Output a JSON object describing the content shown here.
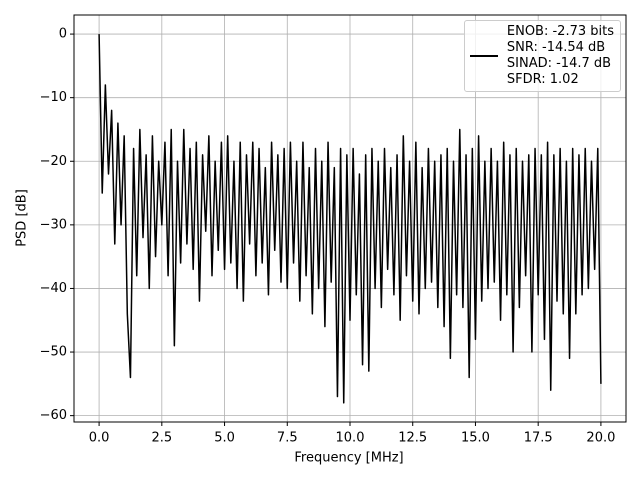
{
  "chart_data": {
    "type": "line",
    "xlabel": "Frequency [MHz]",
    "ylabel": "PSD [dB]",
    "x": [
      0,
      0.125,
      0.25,
      0.375,
      0.5,
      0.625,
      0.75,
      0.875,
      1,
      1.125,
      1.25,
      1.375,
      1.5,
      1.625,
      1.75,
      1.875,
      2,
      2.125,
      2.25,
      2.375,
      2.5,
      2.625,
      2.75,
      2.875,
      3,
      3.125,
      3.25,
      3.375,
      3.5,
      3.625,
      3.75,
      3.875,
      4,
      4.125,
      4.25,
      4.375,
      4.5,
      4.625,
      4.75,
      4.875,
      5,
      5.125,
      5.25,
      5.375,
      5.5,
      5.625,
      5.75,
      5.875,
      6,
      6.125,
      6.25,
      6.375,
      6.5,
      6.625,
      6.75,
      6.875,
      7,
      7.125,
      7.25,
      7.375,
      7.5,
      7.625,
      7.75,
      7.875,
      8,
      8.125,
      8.25,
      8.375,
      8.5,
      8.625,
      8.75,
      8.875,
      9,
      9.125,
      9.25,
      9.375,
      9.5,
      9.625,
      9.75,
      9.875,
      10,
      10.125,
      10.25,
      10.375,
      10.5,
      10.625,
      10.75,
      10.875,
      11,
      11.125,
      11.25,
      11.375,
      11.5,
      11.625,
      11.75,
      11.875,
      12,
      12.125,
      12.25,
      12.375,
      12.5,
      12.625,
      12.75,
      12.875,
      13,
      13.125,
      13.25,
      13.375,
      13.5,
      13.625,
      13.75,
      13.875,
      14,
      14.125,
      14.25,
      14.375,
      14.5,
      14.625,
      14.75,
      14.875,
      15,
      15.125,
      15.25,
      15.375,
      15.5,
      15.625,
      15.75,
      15.875,
      16,
      16.125,
      16.25,
      16.375,
      16.5,
      16.625,
      16.75,
      16.875,
      17,
      17.125,
      17.25,
      17.375,
      17.5,
      17.625,
      17.75,
      17.875,
      18,
      18.125,
      18.25,
      18.375,
      18.5,
      18.625,
      18.75,
      18.875,
      19,
      19.125,
      19.25,
      19.375,
      19.5,
      19.625,
      19.75,
      19.875,
      20
    ],
    "series": [
      {
        "name": "ENOB: -2.73 bits\nSNR: -14.54 dB\nSINAD: -14.7 dB\nSFDR: 1.02",
        "color": "#000000",
        "values": [
          0,
          -25,
          -8,
          -22,
          -12,
          -33,
          -14,
          -30,
          -16,
          -44,
          -54,
          -18,
          -38,
          -15,
          -32,
          -19,
          -40,
          -16,
          -35,
          -20,
          -30,
          -17,
          -38,
          -15,
          -49,
          -20,
          -36,
          -15,
          -33,
          -18,
          -37,
          -17,
          -42,
          -19,
          -31,
          -16,
          -38,
          -20,
          -34,
          -17,
          -37,
          -16,
          -36,
          -20,
          -40,
          -17,
          -42,
          -19,
          -33,
          -17,
          -38,
          -18,
          -36,
          -21,
          -41,
          -17,
          -34,
          -19,
          -39,
          -18,
          -40,
          -17,
          -36,
          -20,
          -42,
          -17,
          -38,
          -21,
          -44,
          -18,
          -40,
          -20,
          -46,
          -17,
          -39,
          -21,
          -57,
          -18,
          -58,
          -19,
          -45,
          -18,
          -41,
          -22,
          -52,
          -19,
          -53,
          -18,
          -40,
          -20,
          -43,
          -18,
          -37,
          -21,
          -41,
          -19,
          -45,
          -16,
          -38,
          -20,
          -42,
          -17,
          -44,
          -21,
          -40,
          -18,
          -39,
          -20,
          -43,
          -19,
          -46,
          -18,
          -51,
          -20,
          -41,
          -15,
          -43,
          -19,
          -54,
          -18,
          -48,
          -16,
          -42,
          -20,
          -40,
          -18,
          -39,
          -20,
          -45,
          -17,
          -41,
          -19,
          -50,
          -18,
          -43,
          -20,
          -38,
          -19,
          -50,
          -18,
          -41,
          -19,
          -48,
          -17,
          -56,
          -19,
          -42,
          -18,
          -44,
          -20,
          -51,
          -18,
          -44,
          -19,
          -41,
          -18,
          -40,
          -20,
          -37,
          -18,
          -55
        ]
      }
    ],
    "xlim": [
      -1,
      21
    ],
    "ylim": [
      -61,
      3
    ],
    "xticks": [
      {
        "value": 0,
        "label": "0.0"
      },
      2.5,
      {
        "value": 5,
        "label": "5.0"
      },
      7.5,
      {
        "value": 10,
        "label": "10.0"
      },
      12.5,
      {
        "value": 15,
        "label": "15.0"
      },
      17.5,
      {
        "value": 20,
        "label": "20.0"
      }
    ],
    "yticks": [
      0,
      {
        "value": -10,
        "label": "−10"
      },
      {
        "value": -20,
        "label": "−20"
      },
      {
        "value": -30,
        "label": "−30"
      },
      {
        "value": -40,
        "label": "−40"
      },
      {
        "value": -50,
        "label": "−50"
      },
      {
        "value": -60,
        "label": "−60"
      }
    ],
    "grid": true,
    "legend": "upper-right"
  }
}
